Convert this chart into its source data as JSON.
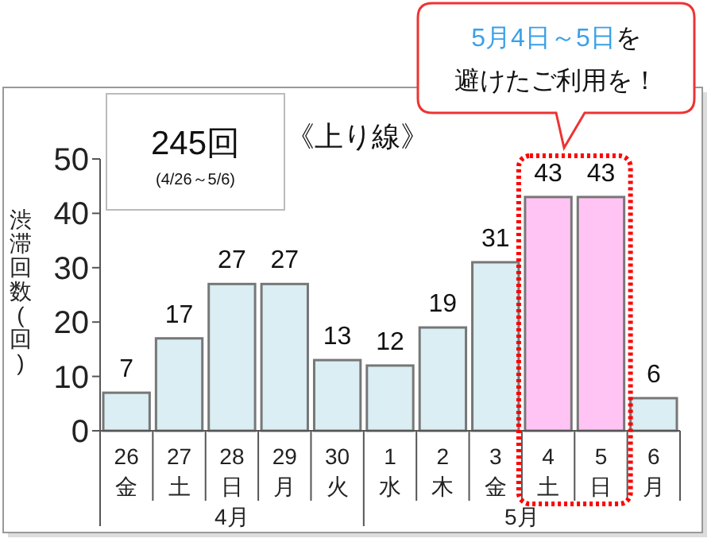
{
  "chart_data": {
    "type": "bar",
    "categories": [
      "26\n金",
      "27\n土",
      "28\n日",
      "29\n月",
      "30\n火",
      "1\n水",
      "2\n木",
      "3\n金",
      "4\n土",
      "5\n日",
      "6\n月"
    ],
    "values": [
      7,
      17,
      27,
      27,
      13,
      12,
      19,
      31,
      43,
      43,
      6
    ],
    "colors": [
      "#daeef3",
      "#daeef3",
      "#daeef3",
      "#daeef3",
      "#daeef3",
      "#daeef3",
      "#daeef3",
      "#daeef3",
      "#ffc4f4",
      "#ffc4f4",
      "#daeef3"
    ],
    "ylabel": "渋滞回数(回)",
    "ylim": [
      0,
      50
    ],
    "yticks": [
      0,
      10,
      20,
      30,
      40,
      50
    ],
    "data_labels": true,
    "grid": false,
    "annotations": [
      "4月",
      "5月",
      "245回",
      "(4/26～5/6)",
      "《上り線》",
      "5月4日～5日を",
      "避けたご利用を！"
    ]
  }
}
